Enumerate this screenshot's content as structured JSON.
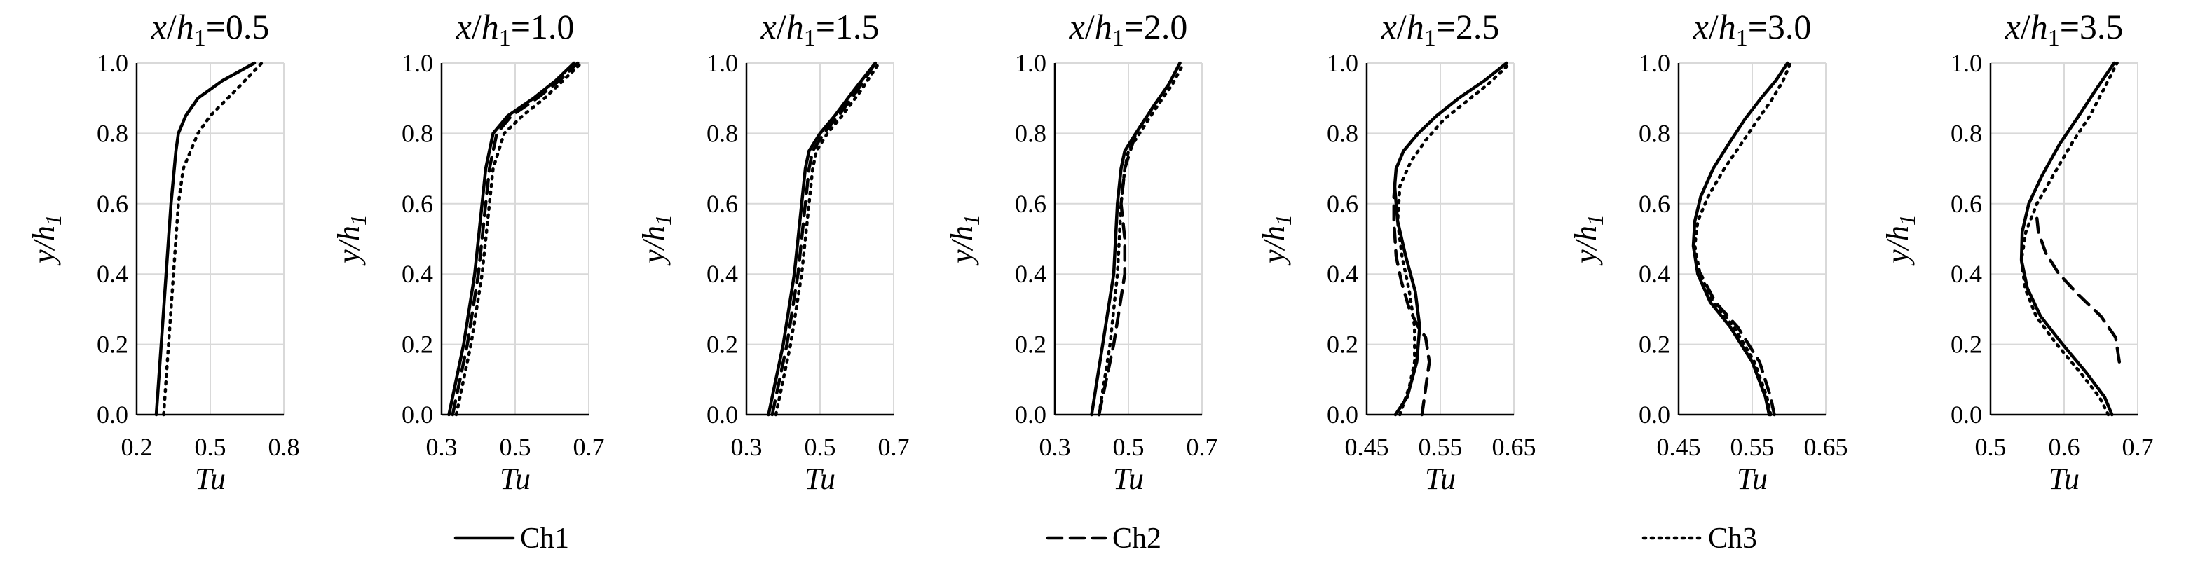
{
  "chart_data": [
    {
      "type": "line",
      "title": "x/h1=0.5",
      "xlabel": "Tu",
      "ylabel": "y/h1",
      "xlim": [
        0.2,
        0.8
      ],
      "ylim": [
        0.0,
        1.0
      ],
      "xticks": [
        "0.2",
        "0.5",
        "0.8"
      ],
      "yticks": [
        "0.0",
        "0.2",
        "0.4",
        "0.6",
        "0.8",
        "1.0"
      ],
      "grid": true,
      "series": [
        {
          "name": "Ch1",
          "style": "solid",
          "x": [
            0.28,
            0.3,
            0.32,
            0.34,
            0.36,
            0.37,
            0.4,
            0.45,
            0.55,
            0.68
          ],
          "y": [
            0.0,
            0.2,
            0.4,
            0.6,
            0.75,
            0.8,
            0.85,
            0.9,
            0.95,
            1.0
          ]
        },
        {
          "name": "Ch3",
          "style": "dotted",
          "x": [
            0.31,
            0.33,
            0.35,
            0.37,
            0.39,
            0.42,
            0.45,
            0.5,
            0.6,
            0.71
          ],
          "y": [
            0.0,
            0.2,
            0.4,
            0.6,
            0.7,
            0.75,
            0.8,
            0.85,
            0.92,
            1.0
          ]
        }
      ]
    },
    {
      "type": "line",
      "title": "x/h1=1.0",
      "xlabel": "Tu",
      "ylabel": "y/h1",
      "xlim": [
        0.3,
        0.7
      ],
      "ylim": [
        0.0,
        1.0
      ],
      "xticks": [
        "0.3",
        "0.5",
        "0.7"
      ],
      "yticks": [
        "0.0",
        "0.2",
        "0.4",
        "0.6",
        "0.8",
        "1.0"
      ],
      "grid": true,
      "series": [
        {
          "name": "Ch1",
          "style": "solid",
          "x": [
            0.32,
            0.36,
            0.39,
            0.41,
            0.42,
            0.44,
            0.48,
            0.55,
            0.61,
            0.66
          ],
          "y": [
            0.0,
            0.2,
            0.4,
            0.6,
            0.7,
            0.8,
            0.85,
            0.9,
            0.95,
            1.0
          ]
        },
        {
          "name": "Ch2",
          "style": "dashed",
          "x": [
            0.33,
            0.37,
            0.4,
            0.42,
            0.43,
            0.45,
            0.49,
            0.56,
            0.62,
            0.67
          ],
          "y": [
            0.0,
            0.2,
            0.4,
            0.6,
            0.7,
            0.8,
            0.85,
            0.9,
            0.95,
            1.0
          ]
        },
        {
          "name": "Ch3",
          "style": "dotted",
          "x": [
            0.34,
            0.38,
            0.41,
            0.43,
            0.44,
            0.47,
            0.52,
            0.58,
            0.63,
            0.68
          ],
          "y": [
            0.0,
            0.2,
            0.4,
            0.6,
            0.7,
            0.8,
            0.85,
            0.9,
            0.95,
            1.0
          ]
        }
      ]
    },
    {
      "type": "line",
      "title": "x/h1=1.5",
      "xlabel": "Tu",
      "ylabel": "y/h1",
      "xlim": [
        0.3,
        0.7
      ],
      "ylim": [
        0.0,
        1.0
      ],
      "xticks": [
        "0.3",
        "0.5",
        "0.7"
      ],
      "yticks": [
        "0.0",
        "0.2",
        "0.4",
        "0.6",
        "0.8",
        "1.0"
      ],
      "grid": true,
      "series": [
        {
          "name": "Ch1",
          "style": "solid",
          "x": [
            0.36,
            0.4,
            0.43,
            0.45,
            0.46,
            0.47,
            0.5,
            0.54,
            0.59,
            0.65
          ],
          "y": [
            0.0,
            0.2,
            0.4,
            0.6,
            0.7,
            0.75,
            0.8,
            0.85,
            0.92,
            1.0
          ]
        },
        {
          "name": "Ch2",
          "style": "dashed",
          "x": [
            0.37,
            0.41,
            0.44,
            0.46,
            0.47,
            0.48,
            0.51,
            0.55,
            0.6,
            0.65
          ],
          "y": [
            0.0,
            0.2,
            0.4,
            0.6,
            0.7,
            0.75,
            0.8,
            0.85,
            0.92,
            1.0
          ]
        },
        {
          "name": "Ch3",
          "style": "dotted",
          "x": [
            0.38,
            0.42,
            0.45,
            0.47,
            0.48,
            0.49,
            0.52,
            0.56,
            0.61,
            0.66
          ],
          "y": [
            0.0,
            0.2,
            0.4,
            0.6,
            0.7,
            0.75,
            0.8,
            0.85,
            0.92,
            1.0
          ]
        }
      ]
    },
    {
      "type": "line",
      "title": "x/h1=2.0",
      "xlabel": "Tu",
      "ylabel": "y/h1",
      "xlim": [
        0.3,
        0.7
      ],
      "ylim": [
        0.0,
        1.0
      ],
      "xticks": [
        "0.3",
        "0.5",
        "0.7"
      ],
      "yticks": [
        "0.0",
        "0.2",
        "0.4",
        "0.6",
        "0.8",
        "1.0"
      ],
      "grid": true,
      "series": [
        {
          "name": "Ch1",
          "style": "solid",
          "x": [
            0.4,
            0.43,
            0.46,
            0.47,
            0.48,
            0.49,
            0.52,
            0.57,
            0.61,
            0.64
          ],
          "y": [
            0.0,
            0.2,
            0.4,
            0.6,
            0.7,
            0.75,
            0.8,
            0.88,
            0.94,
            1.0
          ]
        },
        {
          "name": "Ch2",
          "style": "dashed",
          "x": [
            0.42,
            0.46,
            0.49,
            0.49,
            0.48,
            0.49,
            0.52,
            0.57,
            0.61,
            0.64
          ],
          "y": [
            0.0,
            0.2,
            0.4,
            0.5,
            0.6,
            0.7,
            0.8,
            0.88,
            0.94,
            1.0
          ]
        },
        {
          "name": "Ch3",
          "style": "dotted",
          "x": [
            0.42,
            0.45,
            0.47,
            0.48,
            0.49,
            0.5,
            0.53,
            0.58,
            0.62,
            0.65
          ],
          "y": [
            0.0,
            0.2,
            0.4,
            0.6,
            0.7,
            0.75,
            0.8,
            0.88,
            0.94,
            1.0
          ]
        }
      ]
    },
    {
      "type": "line",
      "title": "x/h1=2.5",
      "xlabel": "Tu",
      "ylabel": "y/h1",
      "xlim": [
        0.45,
        0.65
      ],
      "ylim": [
        0.0,
        1.0
      ],
      "xticks": [
        "0.45",
        "0.55",
        "0.65"
      ],
      "yticks": [
        "0.0",
        "0.2",
        "0.4",
        "0.6",
        "0.8",
        "1.0"
      ],
      "grid": true,
      "series": [
        {
          "name": "Ch1",
          "style": "solid",
          "x": [
            0.489,
            0.505,
            0.518,
            0.522,
            0.516,
            0.503,
            0.492,
            0.488,
            0.49,
            0.5,
            0.52,
            0.545,
            0.575,
            0.61,
            0.64
          ],
          "y": [
            0.0,
            0.05,
            0.15,
            0.25,
            0.35,
            0.45,
            0.55,
            0.65,
            0.7,
            0.75,
            0.8,
            0.85,
            0.9,
            0.95,
            1.0
          ]
        },
        {
          "name": "Ch2",
          "style": "dashed",
          "x": [
            0.525,
            0.535,
            0.53,
            0.52,
            0.508,
            0.497,
            0.49,
            0.487,
            0.487,
            0.489
          ],
          "y": [
            0.0,
            0.15,
            0.22,
            0.25,
            0.3,
            0.38,
            0.45,
            0.55,
            0.62,
            0.68
          ]
        },
        {
          "name": "Ch3",
          "style": "dotted",
          "x": [
            0.495,
            0.508,
            0.515,
            0.515,
            0.508,
            0.498,
            0.492,
            0.495,
            0.51,
            0.53,
            0.555,
            0.585,
            0.615,
            0.645
          ],
          "y": [
            0.0,
            0.08,
            0.15,
            0.25,
            0.35,
            0.45,
            0.55,
            0.65,
            0.72,
            0.78,
            0.84,
            0.89,
            0.94,
            1.0
          ]
        }
      ]
    },
    {
      "type": "line",
      "title": "x/h1=3.0",
      "xlabel": "Tu",
      "ylabel": "y/h1",
      "xlim": [
        0.45,
        0.65
      ],
      "ylim": [
        0.0,
        1.0
      ],
      "xticks": [
        "0.45",
        "0.55",
        "0.65"
      ],
      "yticks": [
        "0.0",
        "0.2",
        "0.4",
        "0.6",
        "0.8",
        "1.0"
      ],
      "grid": true,
      "series": [
        {
          "name": "Ch1",
          "style": "solid",
          "x": [
            0.573,
            0.568,
            0.55,
            0.52,
            0.493,
            0.476,
            0.47,
            0.472,
            0.48,
            0.497,
            0.518,
            0.54,
            0.562,
            0.582,
            0.598
          ],
          "y": [
            0.0,
            0.05,
            0.15,
            0.25,
            0.32,
            0.4,
            0.48,
            0.55,
            0.62,
            0.7,
            0.77,
            0.84,
            0.9,
            0.95,
            1.0
          ]
        },
        {
          "name": "Ch2",
          "style": "dashed",
          "x": [
            0.58,
            0.575,
            0.56,
            0.53,
            0.5,
            0.48
          ],
          "y": [
            0.0,
            0.05,
            0.15,
            0.25,
            0.32,
            0.4
          ]
        },
        {
          "name": "Ch3",
          "style": "dotted",
          "x": [
            0.575,
            0.57,
            0.553,
            0.525,
            0.497,
            0.479,
            0.472,
            0.476,
            0.49,
            0.512,
            0.535,
            0.558,
            0.578,
            0.592,
            0.602
          ],
          "y": [
            0.0,
            0.05,
            0.15,
            0.25,
            0.32,
            0.4,
            0.48,
            0.55,
            0.62,
            0.7,
            0.77,
            0.84,
            0.9,
            0.95,
            1.0
          ]
        }
      ]
    },
    {
      "type": "line",
      "title": "x/h1=3.5",
      "xlabel": "Tu",
      "ylabel": "y/h1",
      "xlim": [
        0.5,
        0.7
      ],
      "ylim": [
        0.0,
        1.0
      ],
      "xticks": [
        "0.5",
        "0.6",
        "0.7"
      ],
      "yticks": [
        "0.0",
        "0.2",
        "0.4",
        "0.6",
        "0.8",
        "1.0"
      ],
      "grid": true,
      "series": [
        {
          "name": "Ch1",
          "style": "solid",
          "x": [
            0.665,
            0.655,
            0.63,
            0.598,
            0.568,
            0.55,
            0.542,
            0.543,
            0.552,
            0.57,
            0.594,
            0.62,
            0.645,
            0.668
          ],
          "y": [
            0.0,
            0.05,
            0.12,
            0.2,
            0.28,
            0.36,
            0.44,
            0.52,
            0.6,
            0.68,
            0.77,
            0.85,
            0.93,
            1.0
          ]
        },
        {
          "name": "Ch2",
          "style": "dashed",
          "x": [
            0.675,
            0.67,
            0.65,
            0.62,
            0.593,
            0.575,
            0.565,
            0.562
          ],
          "y": [
            0.15,
            0.22,
            0.28,
            0.34,
            0.4,
            0.46,
            0.52,
            0.58
          ]
        },
        {
          "name": "Ch3",
          "style": "dotted",
          "x": [
            0.66,
            0.648,
            0.622,
            0.59,
            0.562,
            0.547,
            0.542,
            0.548,
            0.563,
            0.585,
            0.61,
            0.635,
            0.655,
            0.672
          ],
          "y": [
            0.0,
            0.05,
            0.12,
            0.2,
            0.28,
            0.36,
            0.44,
            0.52,
            0.6,
            0.68,
            0.77,
            0.85,
            0.93,
            1.0
          ]
        }
      ]
    }
  ],
  "legend": [
    {
      "name": "Ch1",
      "style": "solid"
    },
    {
      "name": "Ch2",
      "style": "dashed"
    },
    {
      "name": "Ch3",
      "style": "dotted"
    }
  ]
}
